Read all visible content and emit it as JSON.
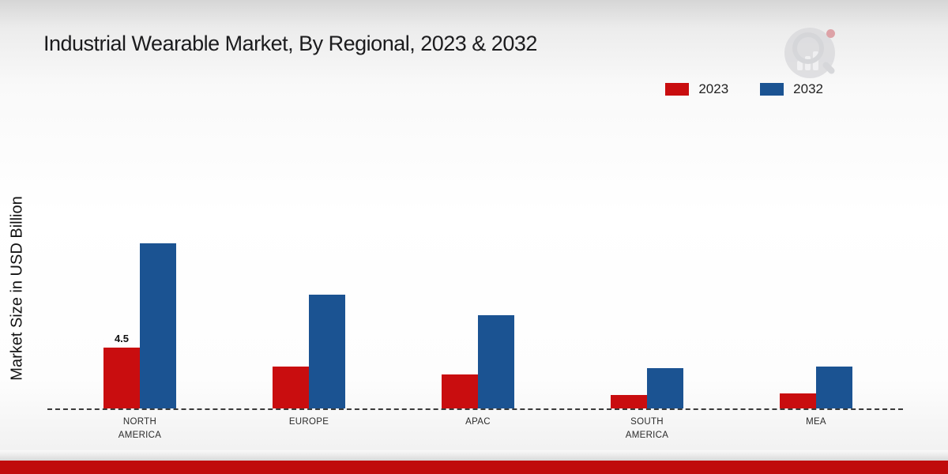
{
  "page": {
    "title": "Industrial Wearable Market, By Regional, 2023 & 2032",
    "ylabel": "Market Size in USD Billion"
  },
  "legend": [
    {
      "label": "2023",
      "color": "#c90d0f"
    },
    {
      "label": "2032",
      "color": "#1b5392"
    }
  ],
  "footer": {
    "band_color": "#c00b0b"
  },
  "chart_data": {
    "type": "bar",
    "title": "Industrial Wearable Market, By Regional, 2023 & 2032",
    "ylabel": "Market Size in USD Billion",
    "xlabel": "",
    "categories": [
      "NORTH\nAMERICA",
      "EUROPE",
      "APAC",
      "SOUTH\nAMERICA",
      "MEA"
    ],
    "series": [
      {
        "name": "2023",
        "color": "#c90d0f",
        "values": [
          4.5,
          3.1,
          2.5,
          1.0,
          1.1
        ]
      },
      {
        "name": "2032",
        "color": "#1b5392",
        "values": [
          12.2,
          8.4,
          6.9,
          3.0,
          3.1
        ]
      }
    ],
    "annotations": [
      {
        "series": 0,
        "category": 0,
        "text": "4.5"
      }
    ],
    "ylim": [
      0,
      14
    ],
    "grid": false,
    "legend_position": "top-right",
    "baseline_style": "dashed"
  }
}
